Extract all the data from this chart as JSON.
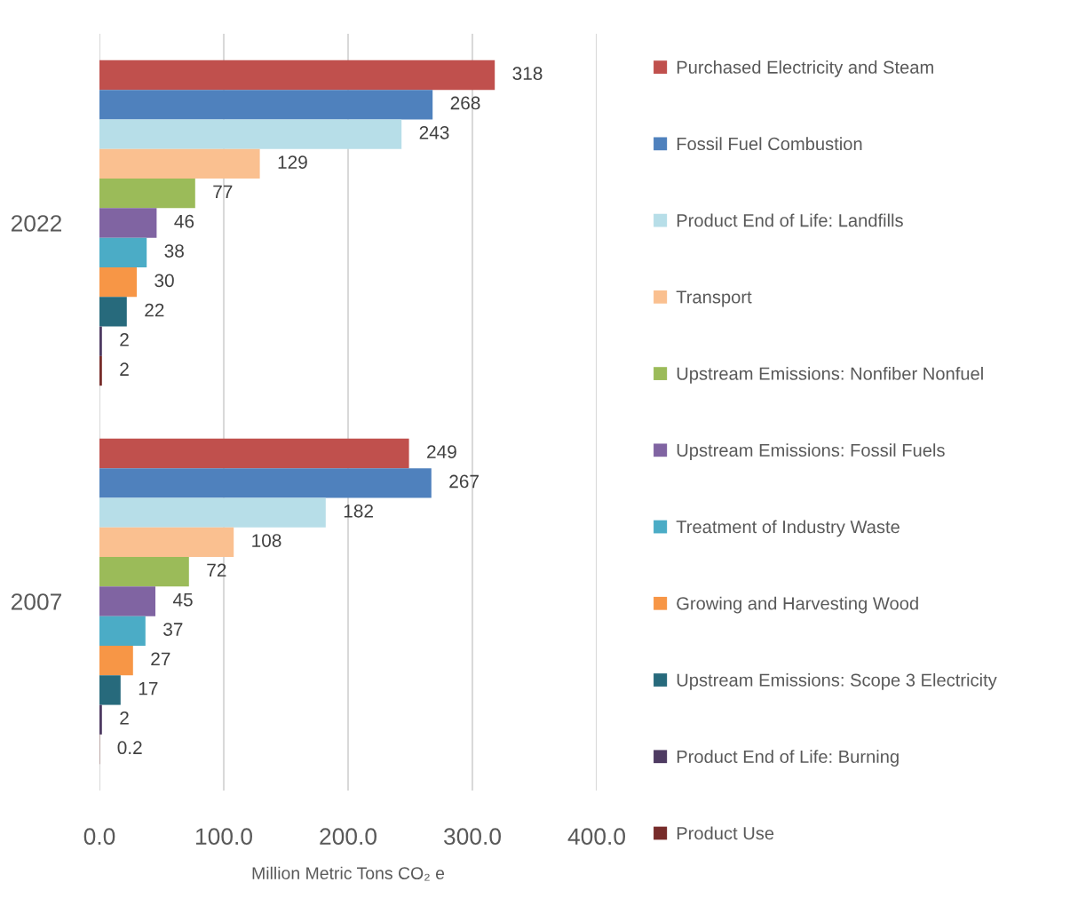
{
  "chart_data": {
    "type": "bar",
    "orientation": "horizontal",
    "categories": [
      "2022",
      "2007"
    ],
    "series": [
      {
        "name": "Purchased Electricity and Steam",
        "color": "#c0504d",
        "values": [
          318,
          249
        ]
      },
      {
        "name": "Fossil Fuel Combustion",
        "color": "#4f81bd",
        "values": [
          268,
          267
        ]
      },
      {
        "name": "Product End of Life: Landfills",
        "color": "#b7dee8",
        "values": [
          243,
          182
        ]
      },
      {
        "name": "Transport",
        "color": "#fac090",
        "values": [
          129,
          108
        ]
      },
      {
        "name": "Upstream Emissions: Nonfiber Nonfuel",
        "color": "#9bbb59",
        "values": [
          77,
          72
        ]
      },
      {
        "name": "Upstream Emissions: Fossil Fuels",
        "color": "#8064a2",
        "values": [
          46,
          45
        ]
      },
      {
        "name": "Treatment of Industry Waste",
        "color": "#4bacc6",
        "values": [
          38,
          37
        ]
      },
      {
        "name": "Growing and Harvesting Wood",
        "color": "#f79646",
        "values": [
          30,
          27
        ]
      },
      {
        "name": "Upstream Emissions: Scope 3 Electricity",
        "color": "#276a7c",
        "values": [
          22,
          17
        ]
      },
      {
        "name": "Product End of Life: Burning",
        "color": "#4e3b62",
        "values": [
          2,
          2
        ]
      },
      {
        "name": "Product Use",
        "color": "#772c2a",
        "values": [
          2,
          0.2
        ]
      }
    ],
    "xlim": [
      0,
      400
    ],
    "xticks": [
      {
        "value": 0,
        "label": "0.0"
      },
      {
        "value": 100,
        "label": "100.0"
      },
      {
        "value": 200,
        "label": "200.0"
      },
      {
        "value": 300,
        "label": "300.0"
      },
      {
        "value": 400,
        "label": "400.0"
      }
    ],
    "xlabel": "Million Metric Tons CO₂ e",
    "grid": "x",
    "legend": "right",
    "data_labels": true
  }
}
